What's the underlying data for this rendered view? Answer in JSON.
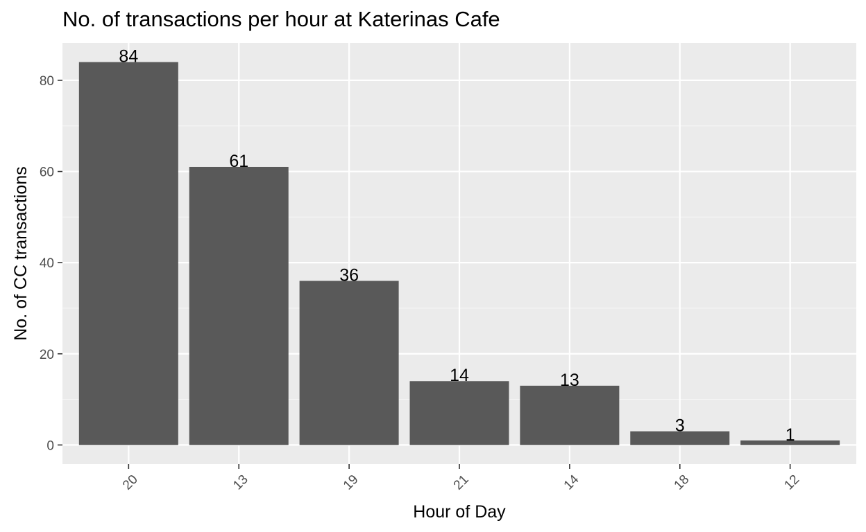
{
  "chart_data": {
    "type": "bar",
    "title": "No. of transactions per hour at Katerinas Cafe",
    "xlabel": "Hour of Day",
    "ylabel": "No. of CC transactions",
    "categories": [
      "20",
      "13",
      "19",
      "21",
      "14",
      "18",
      "12"
    ],
    "values": [
      84,
      61,
      36,
      14,
      13,
      3,
      1
    ],
    "data_labels": [
      "84",
      "61",
      "36",
      "14",
      "13",
      "3",
      "1"
    ],
    "y_ticks": [
      0,
      20,
      40,
      60,
      80
    ],
    "y_tick_labels": [
      "0",
      "20",
      "40",
      "60",
      "80"
    ],
    "ylim": [
      -4.2,
      88.2
    ],
    "grid": true,
    "legend": "none",
    "colors": {
      "bar": "#595959",
      "panel": "#ebebeb",
      "grid_major": "#ffffff",
      "grid_minor": "#f5f5f5",
      "tick_text": "#4d4d4d",
      "tick_mark": "#333333",
      "text": "#000000"
    }
  }
}
